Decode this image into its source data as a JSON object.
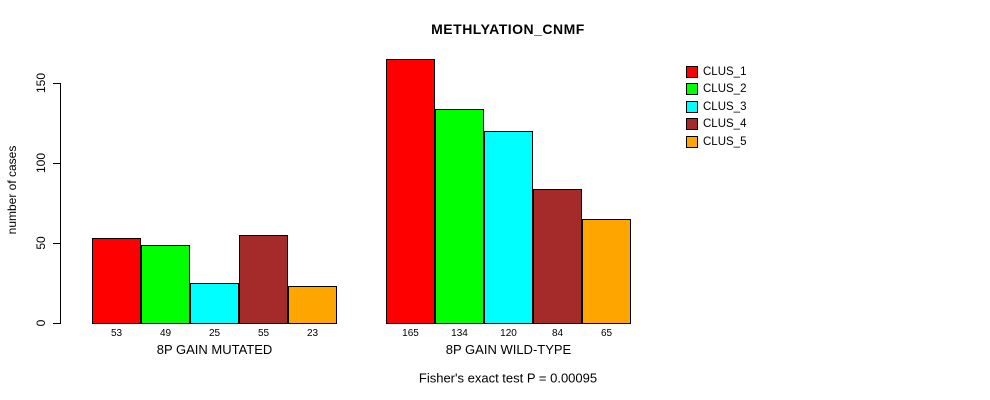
{
  "title": "METHLYATION_CNMF",
  "y_axis": {
    "label": "number of cases",
    "tick_labels": [
      "0",
      "50",
      "100",
      "150"
    ]
  },
  "footer": "Fisher's exact test P = 0.00095",
  "legend": {
    "items": [
      {
        "label": "CLUS_1",
        "color": "#ff0000"
      },
      {
        "label": "CLUS_2",
        "color": "#00ff00"
      },
      {
        "label": "CLUS_3",
        "color": "#00ffff"
      },
      {
        "label": "CLUS_4",
        "color": "#a52a2a"
      },
      {
        "label": "CLUS_5",
        "color": "#ffa500"
      }
    ]
  },
  "chart_data": {
    "type": "bar",
    "title": "METHLYATION_CNMF",
    "ylabel": "number of cases",
    "xlabel": "",
    "ylim": [
      0,
      165
    ],
    "yticks": [
      0,
      50,
      100,
      150
    ],
    "grid": false,
    "legend_position": "upper-right",
    "series_names": [
      "CLUS_1",
      "CLUS_2",
      "CLUS_3",
      "CLUS_4",
      "CLUS_5"
    ],
    "series_colors": [
      "#ff0000",
      "#00ff00",
      "#00ffff",
      "#a52a2a",
      "#ffa500"
    ],
    "groups": [
      {
        "label": "8P GAIN MUTATED",
        "values": [
          53,
          49,
          25,
          55,
          23
        ]
      },
      {
        "label": "8P GAIN WILD-TYPE",
        "values": [
          165,
          134,
          120,
          84,
          65
        ]
      }
    ],
    "bar_value_labels_shown": true,
    "annotation": "Fisher's exact test P = 0.00095"
  }
}
